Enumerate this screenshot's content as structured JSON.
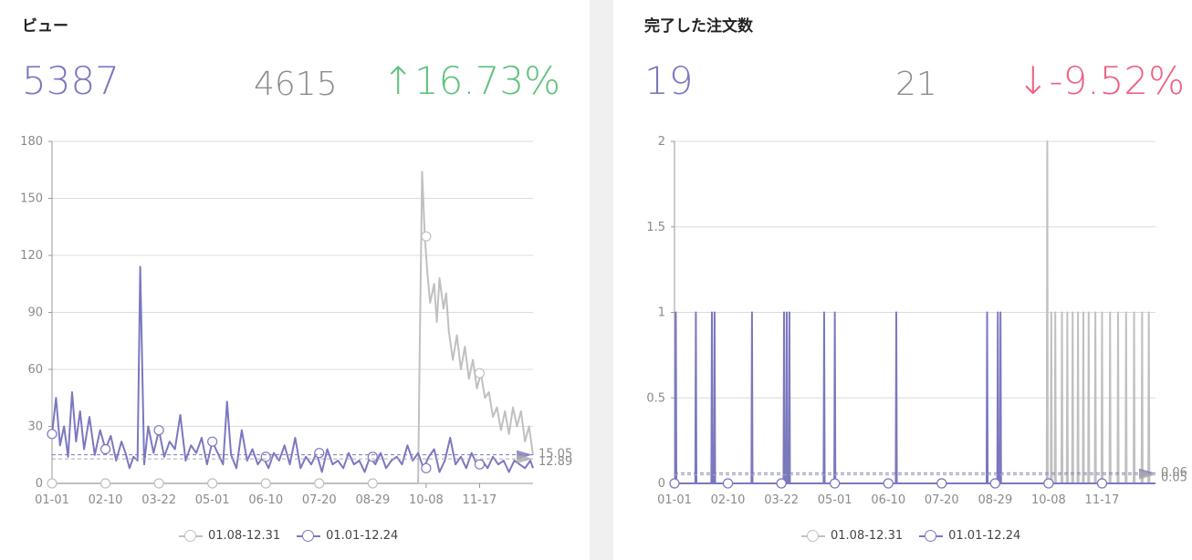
{
  "legend_labels": [
    "01.08-12.31",
    "01.01-12.24"
  ],
  "colors": {
    "current": "#7b78bf",
    "previous": "#c0c0c0",
    "up": "#5fc27e",
    "down": "#ec6384"
  },
  "panels": [
    {
      "title": "ビュー",
      "current": "5387",
      "previous": "4615",
      "change": "↑16.73%",
      "direction": "up"
    },
    {
      "title": "完了した注文数",
      "current": "19",
      "previous": "21",
      "change": "↓-9.52%",
      "direction": "down"
    }
  ],
  "chart_data": [
    {
      "type": "line",
      "categories": [
        "01-01",
        "02-10",
        "03-22",
        "05-01",
        "06-10",
        "07-20",
        "08-29",
        "10-08",
        "11-17"
      ],
      "ylim": [
        0,
        180
      ],
      "yticks": [
        0,
        30,
        60,
        90,
        120,
        150,
        180
      ],
      "average_labels": [
        "15.05",
        "12.89"
      ],
      "series": [
        {
          "name": "01.08-12.31",
          "color": "#c0c0c0",
          "points": [
            [
              0,
              0
            ],
            [
              274,
              0
            ],
            [
              275,
              60
            ],
            [
              277,
              164
            ],
            [
              279,
              130
            ],
            [
              281,
              110
            ],
            [
              283,
              95
            ],
            [
              286,
              105
            ],
            [
              288,
              85
            ],
            [
              290,
              108
            ],
            [
              293,
              92
            ],
            [
              295,
              100
            ],
            [
              297,
              80
            ],
            [
              300,
              65
            ],
            [
              303,
              78
            ],
            [
              306,
              60
            ],
            [
              309,
              72
            ],
            [
              312,
              55
            ],
            [
              315,
              65
            ],
            [
              318,
              50
            ],
            [
              321,
              58
            ],
            [
              324,
              45
            ],
            [
              327,
              48
            ],
            [
              330,
              35
            ],
            [
              333,
              40
            ],
            [
              336,
              28
            ],
            [
              339,
              38
            ],
            [
              342,
              26
            ],
            [
              345,
              40
            ],
            [
              348,
              30
            ],
            [
              351,
              38
            ],
            [
              354,
              22
            ],
            [
              357,
              30
            ],
            [
              360,
              15
            ]
          ]
        },
        {
          "name": "01.01-12.24",
          "color": "#7b78bf",
          "points": [
            [
              0,
              26
            ],
            [
              3,
              45
            ],
            [
              6,
              20
            ],
            [
              9,
              30
            ],
            [
              12,
              14
            ],
            [
              15,
              48
            ],
            [
              18,
              22
            ],
            [
              21,
              38
            ],
            [
              24,
              18
            ],
            [
              28,
              35
            ],
            [
              32,
              15
            ],
            [
              36,
              28
            ],
            [
              40,
              18
            ],
            [
              44,
              25
            ],
            [
              48,
              12
            ],
            [
              52,
              22
            ],
            [
              55,
              16
            ],
            [
              58,
              8
            ],
            [
              61,
              14
            ],
            [
              64,
              12
            ],
            [
              66,
              114
            ],
            [
              69,
              10
            ],
            [
              72,
              30
            ],
            [
              76,
              16
            ],
            [
              80,
              28
            ],
            [
              84,
              14
            ],
            [
              88,
              22
            ],
            [
              92,
              18
            ],
            [
              96,
              36
            ],
            [
              100,
              12
            ],
            [
              104,
              20
            ],
            [
              108,
              16
            ],
            [
              112,
              24
            ],
            [
              116,
              10
            ],
            [
              120,
              22
            ],
            [
              124,
              16
            ],
            [
              128,
              10
            ],
            [
              131,
              43
            ],
            [
              134,
              15
            ],
            [
              138,
              8
            ],
            [
              142,
              28
            ],
            [
              146,
              12
            ],
            [
              150,
              18
            ],
            [
              154,
              10
            ],
            [
              158,
              14
            ],
            [
              162,
              8
            ],
            [
              166,
              16
            ],
            [
              170,
              12
            ],
            [
              174,
              20
            ],
            [
              178,
              10
            ],
            [
              182,
              24
            ],
            [
              186,
              8
            ],
            [
              190,
              14
            ],
            [
              194,
              10
            ],
            [
              198,
              16
            ],
            [
              202,
              6
            ],
            [
              206,
              18
            ],
            [
              210,
              10
            ],
            [
              214,
              12
            ],
            [
              218,
              8
            ],
            [
              222,
              16
            ],
            [
              226,
              10
            ],
            [
              230,
              12
            ],
            [
              234,
              6
            ],
            [
              238,
              14
            ],
            [
              242,
              10
            ],
            [
              246,
              16
            ],
            [
              250,
              8
            ],
            [
              254,
              12
            ],
            [
              258,
              14
            ],
            [
              262,
              10
            ],
            [
              266,
              20
            ],
            [
              270,
              12
            ],
            [
              274,
              16
            ],
            [
              278,
              8
            ],
            [
              282,
              14
            ],
            [
              286,
              18
            ],
            [
              290,
              6
            ],
            [
              294,
              12
            ],
            [
              298,
              24
            ],
            [
              302,
              10
            ],
            [
              306,
              14
            ],
            [
              310,
              8
            ],
            [
              314,
              16
            ],
            [
              318,
              10
            ],
            [
              322,
              12
            ],
            [
              326,
              8
            ],
            [
              330,
              14
            ],
            [
              334,
              10
            ],
            [
              338,
              12
            ],
            [
              342,
              6
            ],
            [
              346,
              12
            ],
            [
              350,
              10
            ],
            [
              354,
              8
            ],
            [
              358,
              12
            ],
            [
              360,
              8
            ]
          ]
        }
      ]
    },
    {
      "type": "line",
      "categories": [
        "01-01",
        "02-10",
        "03-22",
        "05-01",
        "06-10",
        "07-20",
        "08-29",
        "10-08",
        "11-17"
      ],
      "ylim": [
        0,
        2
      ],
      "yticks": [
        0,
        0.5,
        1,
        1.5,
        2
      ],
      "yticklabels": [
        "0",
        "0.5",
        "1",
        "1.5",
        "2"
      ],
      "average_labels": [
        "0.06",
        "0.05"
      ],
      "series": [
        {
          "name": "01.08-12.31",
          "color": "#c0c0c0",
          "spikes": [
            [
              279,
              2
            ],
            [
              282,
              1
            ],
            [
              285,
              1
            ],
            [
              290,
              1
            ],
            [
              294,
              1
            ],
            [
              298,
              1
            ],
            [
              302,
              1
            ],
            [
              306,
              1
            ],
            [
              310,
              1
            ],
            [
              315,
              1
            ],
            [
              320,
              1
            ],
            [
              326,
              1
            ],
            [
              332,
              1
            ],
            [
              338,
              1
            ],
            [
              344,
              1
            ],
            [
              350,
              1
            ],
            [
              355,
              1
            ]
          ]
        },
        {
          "name": "01.01-12.24",
          "color": "#7b78bf",
          "spikes": [
            [
              1,
              1
            ],
            [
              16,
              1
            ],
            [
              28,
              1
            ],
            [
              30,
              1
            ],
            [
              58,
              1
            ],
            [
              82,
              1
            ],
            [
              84,
              1
            ],
            [
              86,
              1
            ],
            [
              112,
              1
            ],
            [
              120,
              1
            ],
            [
              166,
              1
            ],
            [
              234,
              1
            ],
            [
              242,
              1
            ],
            [
              244,
              1
            ]
          ]
        }
      ]
    }
  ]
}
